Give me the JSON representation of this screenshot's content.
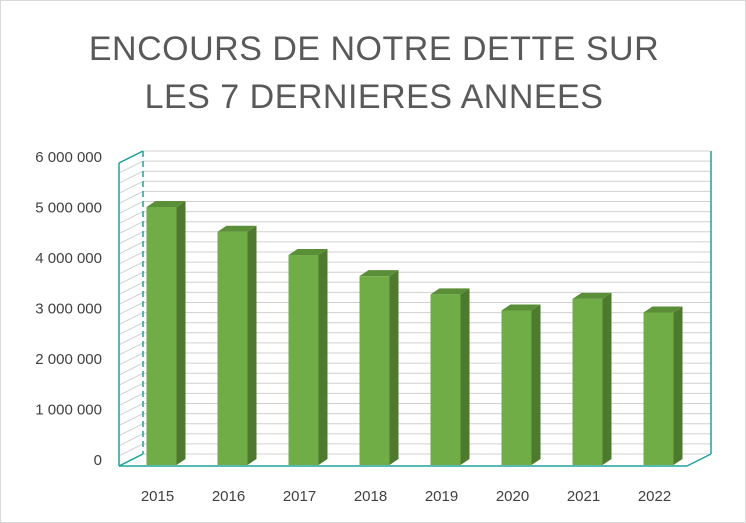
{
  "chart_data": {
    "type": "bar",
    "title_lines": [
      "ENCOURS DE NOTRE DETTE SUR",
      "LES 7 DERNIERES ANNEES"
    ],
    "xlabel": "",
    "ylabel": "",
    "categories": [
      "2015",
      "2016",
      "2017",
      "2018",
      "2019",
      "2020",
      "2021",
      "2022"
    ],
    "values": [
      5070000,
      4580000,
      4120000,
      3700000,
      3340000,
      3020000,
      3250000,
      2980000
    ],
    "ylim": [
      0,
      6000000
    ],
    "yticks": [
      0,
      1000000,
      2000000,
      3000000,
      4000000,
      5000000,
      6000000
    ],
    "ytick_labels": [
      "0",
      "1 000 000",
      "2 000 000",
      "3 000 000",
      "4 000 000",
      "5 000 000",
      "6 000 000"
    ],
    "grid": true,
    "legend": "none",
    "style": "3d-column",
    "colors": {
      "bar_front": "#70ad47",
      "bar_side": "#4e7a30",
      "bar_top": "#5a8f38",
      "wall_line": "#1fa39a",
      "grid": "#d0d0d0"
    }
  }
}
